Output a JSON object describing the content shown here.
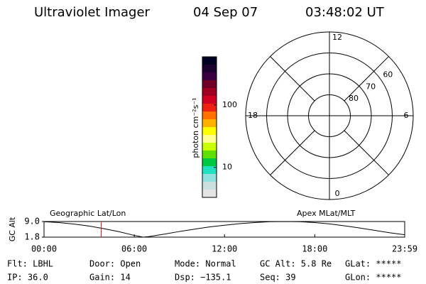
{
  "header": {
    "title": "Ultraviolet Imager",
    "date": "04 Sep 07",
    "time": "03:48:02 UT"
  },
  "colorbar": {
    "label": "photon cm⁻²s⁻¹",
    "scale": "log",
    "lim": [
      3.3,
      590
    ],
    "ticks": [
      10,
      100
    ],
    "colors": [
      "#000022",
      "#1c0030",
      "#3a0040",
      "#700028",
      "#a00020",
      "#d00020",
      "#f02010",
      "#ff7000",
      "#ffb000",
      "#ffff00",
      "#ffff90",
      "#c8ff00",
      "#60e000",
      "#00c840",
      "#20e0c0",
      "#90e0e0",
      "#c8e0e0",
      "#e4e4e4"
    ]
  },
  "polar": {
    "rlim": [
      90,
      50
    ],
    "rings": [
      60,
      70,
      80
    ],
    "mlt_ticks": [
      12,
      6,
      0,
      18
    ]
  },
  "chart_data": {
    "type": "line",
    "ylabel": "GC Alt",
    "color": "#000",
    "x": [
      0,
      1,
      2,
      3,
      4,
      5,
      6,
      6.6,
      7,
      8,
      9,
      10,
      11,
      12,
      13,
      14,
      15,
      16,
      17,
      18,
      19,
      20,
      21,
      22,
      23,
      23.98
    ],
    "values": [
      8.9,
      8.5,
      7.8,
      6.9,
      5.7,
      4.3,
      2.6,
      1.8,
      2.1,
      3.2,
      4.4,
      5.5,
      6.5,
      7.3,
      8.0,
      8.5,
      8.9,
      9.0,
      8.9,
      8.5,
      7.9,
      7.0,
      6.0,
      4.9,
      3.8,
      2.9
    ],
    "xlim": [
      0,
      23.98
    ],
    "xticks": [
      {
        "value": 0,
        "label": "00:00"
      },
      {
        "value": 6,
        "label": "06:00"
      },
      {
        "value": 12,
        "label": "12:00"
      },
      {
        "value": 18,
        "label": "18:00"
      },
      {
        "value": 23.98,
        "label": "23:59"
      }
    ],
    "ylim": [
      1.8,
      9
    ],
    "yticks": [
      {
        "value": 9,
        "label": "9.0"
      },
      1.8
    ],
    "annotations": [
      "Geographic Lat/Lon",
      "Apex MLat/MLT"
    ],
    "marker_x": 3.8,
    "marker_color": "#e02020"
  },
  "status": {
    "rows": [
      [
        "Flt: LBHL",
        "Door: Open",
        "Mode: Normal",
        "GC Alt: 5.8 Re",
        "GLat: *****"
      ],
      [
        "IP: 36.0",
        "Gain: 14",
        "Dsp: −135.1",
        "Seq: 39",
        "GLon: *****"
      ]
    ]
  }
}
